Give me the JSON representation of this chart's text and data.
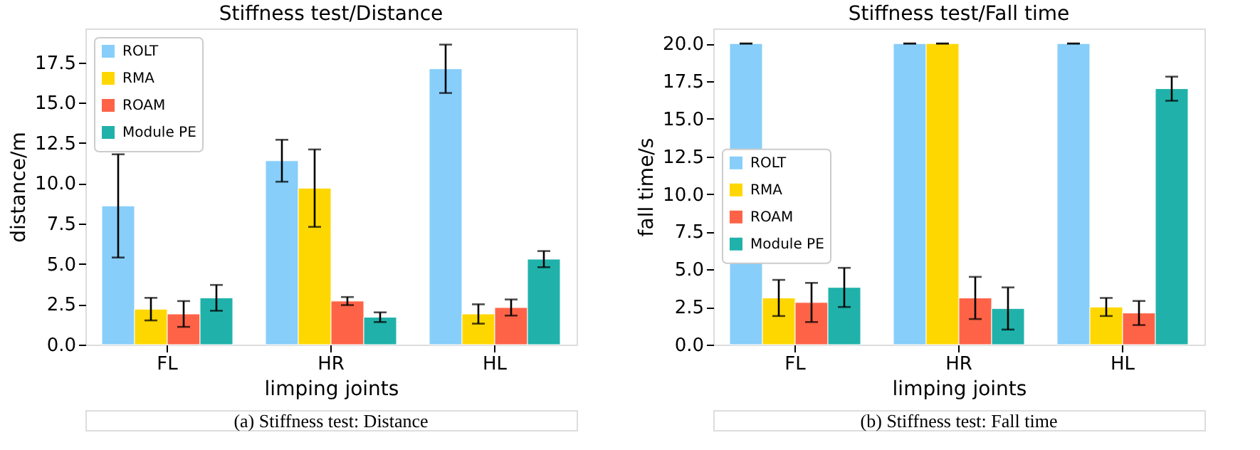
{
  "chart_data": [
    {
      "type": "bar",
      "title": "Stiffness test/Distance",
      "xlabel": "limping joints",
      "ylabel": "distance/m",
      "categories": [
        "FL",
        "HR",
        "HL"
      ],
      "series": [
        {
          "name": "ROLT",
          "color": "#87cefa",
          "values": [
            8.6,
            11.4,
            17.1
          ],
          "errors": [
            3.2,
            1.3,
            1.5
          ]
        },
        {
          "name": "RMA",
          "color": "#ffd700",
          "values": [
            2.2,
            9.7,
            1.9
          ],
          "errors": [
            0.7,
            2.4,
            0.6
          ]
        },
        {
          "name": "ROAM",
          "color": "#ff6347",
          "values": [
            1.9,
            2.7,
            2.3
          ],
          "errors": [
            0.8,
            0.25,
            0.5
          ]
        },
        {
          "name": "Module PE",
          "color": "#20b2aa",
          "values": [
            2.9,
            1.7,
            5.3
          ],
          "errors": [
            0.8,
            0.3,
            0.5
          ]
        }
      ],
      "ylim": [
        0,
        19.6
      ],
      "yticks": [
        {
          "value": 0,
          "label": "0.0"
        },
        2.5,
        {
          "value": 5,
          "label": "5.0"
        },
        7.5,
        {
          "value": 10,
          "label": "10.0"
        },
        12.5,
        {
          "value": 15,
          "label": "15.0"
        },
        17.5
      ],
      "grid": false,
      "legend": "top left",
      "annotations": [
        "(a) Stiffness test: Distance"
      ]
    },
    {
      "type": "bar",
      "title": "Stiffness test/Fall time",
      "xlabel": "limping joints",
      "ylabel": "fall time/s",
      "categories": [
        "FL",
        "HR",
        "HL"
      ],
      "series": [
        {
          "name": "ROLT",
          "color": "#87cefa",
          "values": [
            20,
            20,
            20
          ],
          "errors": [
            0,
            0,
            0
          ]
        },
        {
          "name": "RMA",
          "color": "#ffd700",
          "values": [
            3.1,
            20,
            2.5
          ],
          "errors": [
            1.2,
            0,
            0.6
          ]
        },
        {
          "name": "ROAM",
          "color": "#ff6347",
          "values": [
            2.8,
            3.1,
            2.1
          ],
          "errors": [
            1.3,
            1.4,
            0.8
          ]
        },
        {
          "name": "Module PE",
          "color": "#20b2aa",
          "values": [
            3.8,
            2.4,
            17.0
          ],
          "errors": [
            1.3,
            1.4,
            0.8
          ]
        }
      ],
      "ylim": [
        0,
        21.0
      ],
      "yticks": [
        {
          "value": 0,
          "label": "0.0"
        },
        2.5,
        {
          "value": 5,
          "label": "5.0"
        },
        7.5,
        {
          "value": 10,
          "label": "10.0"
        },
        12.5,
        {
          "value": 15,
          "label": "15.0"
        },
        17.5,
        {
          "value": 20,
          "label": "20.0"
        }
      ],
      "grid": false,
      "legend": "left",
      "annotations": [
        "(b) Stiffness test: Fall time"
      ]
    }
  ]
}
